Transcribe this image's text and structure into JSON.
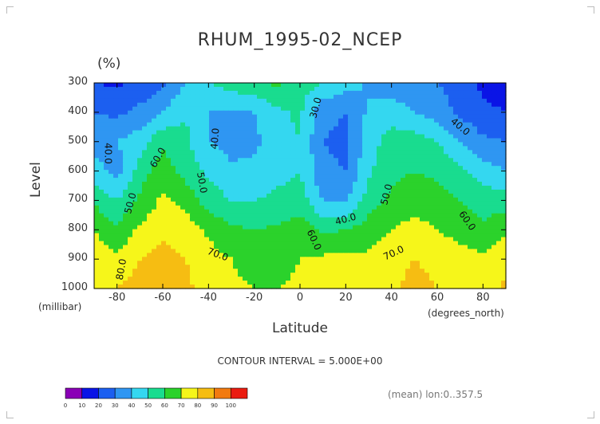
{
  "chart_data": {
    "type": "heatmap",
    "title": "RHUM_1995-02_NCEP",
    "units": "(%)",
    "xlabel": "Latitude",
    "xunits": "(degrees_north)",
    "ylabel": "Level",
    "yunits": "(millibar)",
    "xlim": [
      -90,
      90
    ],
    "ylim": [
      1000,
      300
    ],
    "xticks": [
      -80,
      -60,
      -40,
      -20,
      0,
      20,
      40,
      60,
      80
    ],
    "yticks": [
      300,
      400,
      500,
      600,
      700,
      800,
      900,
      1000
    ],
    "contour_interval_note": "CONTOUR INTERVAL = 5.000E+00",
    "mean_note": "(mean) lon:0..357.5",
    "latitudes": [
      -90,
      -80,
      -70,
      -60,
      -50,
      -40,
      -30,
      -20,
      -10,
      0,
      10,
      20,
      30,
      40,
      50,
      60,
      70,
      80,
      90
    ],
    "levels": [
      300,
      400,
      500,
      600,
      700,
      800,
      900,
      1000
    ],
    "values": [
      [
        20,
        18,
        22,
        28,
        40,
        50,
        55,
        58,
        62,
        55,
        50,
        45,
        38,
        35,
        33,
        30,
        25,
        18,
        15
      ],
      [
        30,
        28,
        33,
        40,
        50,
        40,
        38,
        40,
        48,
        52,
        32,
        30,
        42,
        45,
        40,
        35,
        28,
        22,
        20
      ],
      [
        35,
        40,
        45,
        58,
        52,
        40,
        36,
        38,
        45,
        50,
        30,
        28,
        45,
        55,
        55,
        50,
        40,
        32,
        30
      ],
      [
        45,
        35,
        55,
        65,
        56,
        48,
        42,
        42,
        47,
        50,
        32,
        30,
        48,
        58,
        60,
        58,
        52,
        45,
        40
      ],
      [
        58,
        50,
        62,
        72,
        67,
        55,
        50,
        50,
        52,
        55,
        40,
        38,
        55,
        62,
        65,
        64,
        60,
        55,
        55
      ],
      [
        70,
        62,
        72,
        78,
        75,
        68,
        62,
        60,
        62,
        65,
        58,
        60,
        65,
        70,
        74,
        70,
        66,
        62,
        68
      ],
      [
        75,
        72,
        80,
        84,
        80,
        74,
        70,
        66,
        66,
        70,
        72,
        72,
        72,
        76,
        80,
        77,
        74,
        72,
        78
      ],
      [
        76,
        80,
        84,
        90,
        82,
        76,
        72,
        70,
        70,
        72,
        74,
        74,
        73,
        78,
        84,
        80,
        76,
        75,
        82
      ]
    ],
    "contour_labels": [
      {
        "text": "40.0",
        "lat": -84,
        "lev": 540,
        "angle": 90
      },
      {
        "text": "50.0",
        "lat": -74,
        "lev": 710,
        "angle": -75
      },
      {
        "text": "60.0",
        "lat": -62,
        "lev": 555,
        "angle": -60
      },
      {
        "text": "80.0",
        "lat": -78,
        "lev": 935,
        "angle": -80
      },
      {
        "text": "40.0",
        "lat": -37,
        "lev": 490,
        "angle": -85
      },
      {
        "text": "50.0",
        "lat": -43,
        "lev": 640,
        "angle": 80
      },
      {
        "text": "70.0",
        "lat": -36,
        "lev": 885,
        "angle": 20
      },
      {
        "text": "30.0",
        "lat": 7,
        "lev": 385,
        "angle": -75
      },
      {
        "text": "40.0",
        "lat": 20,
        "lev": 765,
        "angle": -15
      },
      {
        "text": "60.0",
        "lat": 6,
        "lev": 835,
        "angle": 65
      },
      {
        "text": "50.0",
        "lat": 38,
        "lev": 680,
        "angle": -75
      },
      {
        "text": "70.0",
        "lat": 41,
        "lev": 880,
        "angle": -25
      },
      {
        "text": "40.0",
        "lat": 70,
        "lev": 450,
        "angle": 40
      },
      {
        "text": "60.0",
        "lat": 73,
        "lev": 770,
        "angle": 55
      }
    ],
    "colorbar": {
      "ticks": [
        "0",
        "10",
        "20",
        "30",
        "40",
        "50",
        "60",
        "70",
        "80",
        "90",
        "100"
      ],
      "colors": [
        "#8a00b6",
        "#0a14e6",
        "#1c5ff0",
        "#2f96f2",
        "#34d7f0",
        "#19dc8f",
        "#2bd22b",
        "#f6f61a",
        "#f6bd12",
        "#f27a10",
        "#ea1c10"
      ]
    }
  }
}
